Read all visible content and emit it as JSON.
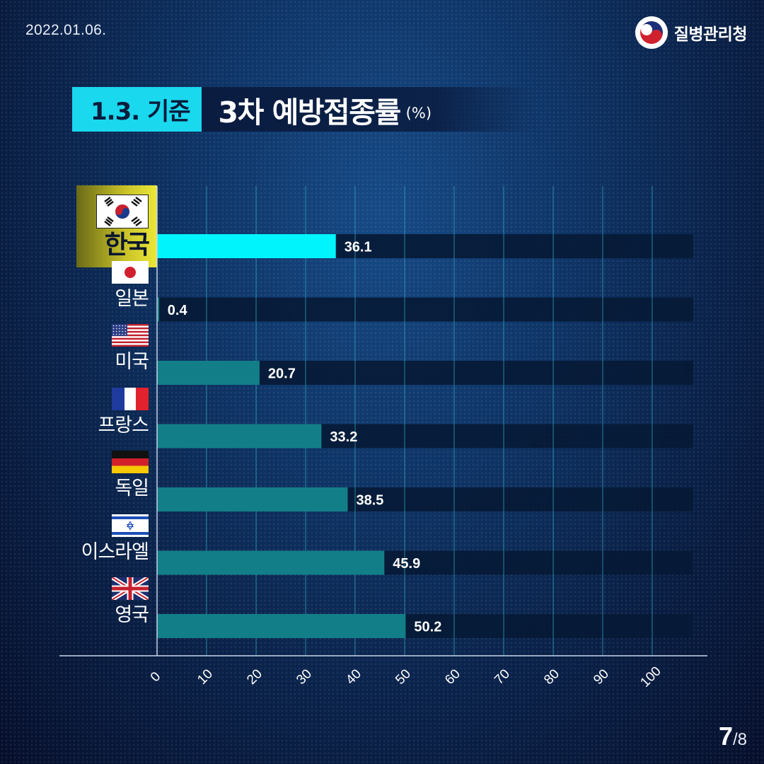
{
  "header": {
    "date": "2022.01.06.",
    "org_name": "질병관리청"
  },
  "title": {
    "tag": "1.3. 기준",
    "main": "3차 예방접종률",
    "unit": "(%)"
  },
  "chart_data": {
    "type": "bar",
    "orientation": "horizontal",
    "title": "3차 예방접종률",
    "unit": "%",
    "categories": [
      "한국",
      "일본",
      "미국",
      "프랑스",
      "독일",
      "이스라엘",
      "영국"
    ],
    "values": [
      36.1,
      0.4,
      20.7,
      33.2,
      38.5,
      45.9,
      50.2
    ],
    "value_labels": [
      "36.1",
      "0.4",
      "20.7",
      "33.2",
      "38.5",
      "45.9",
      "50.2"
    ],
    "xlim": [
      0,
      110
    ],
    "xticks": [
      0,
      10,
      20,
      30,
      40,
      50,
      60,
      70,
      80,
      90,
      100
    ],
    "grid": true,
    "highlight_category": "한국",
    "colors": {
      "highlight_bar": "#00f4fc",
      "bar": "#127f88",
      "track": "#071a36",
      "grid": "#2fa6c0",
      "axis": "#c8d4e8",
      "highlight_bg": "#d6d02e"
    }
  },
  "flags": [
    "korea-flag",
    "japan-flag",
    "usa-flag",
    "france-flag",
    "germany-flag",
    "israel-flag",
    "uk-flag"
  ],
  "pagination": {
    "current": "7",
    "total": "/8"
  }
}
